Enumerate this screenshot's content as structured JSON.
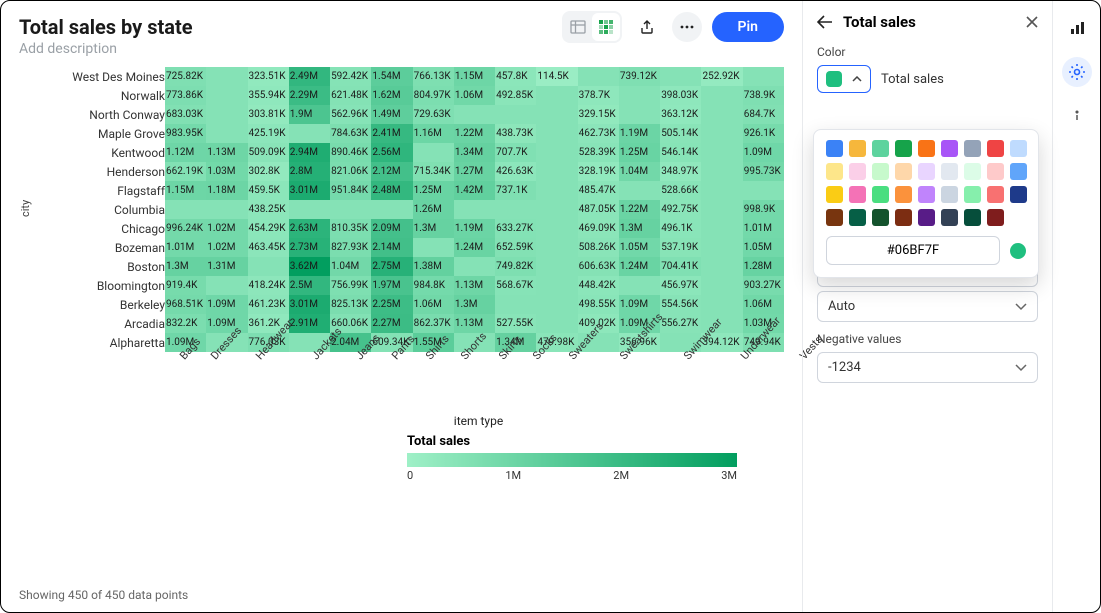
{
  "header": {
    "title": "Total sales by state",
    "subtitle": "Add description",
    "pin_label": "Pin"
  },
  "panel": {
    "title": "Total sales",
    "color_label": "Color",
    "series_label": "Total sales",
    "auto_label": "Auto",
    "neg_label": "Negative values",
    "neg_value": "-1234",
    "hex": "#06BF7F",
    "swatch": "#1fbf7f"
  },
  "palette": [
    "#3b82f6",
    "#f6b73c",
    "#5dd39e",
    "#16a34a",
    "#f97316",
    "#a855f7",
    "#94a3b8",
    "#ef4444",
    "#ffffff00",
    "#bfdbfe",
    "#fde68a",
    "#fbcfe8",
    "#c7f9cc",
    "#fed7aa",
    "#e9d5ff",
    "#e2e8f0",
    "#dcfce7",
    "#fecaca",
    "#60a5fa",
    "#facc15",
    "#f472b6",
    "#4ade80",
    "#fb923c",
    "#c084fc",
    "#cbd5e1",
    "#86efac",
    "#f87171",
    "#1e3a8a",
    "#78350f",
    "#065f46",
    "#14532d",
    "#7c2d12",
    "#581c87",
    "#334155",
    "#064e3b",
    "#7f1d1d"
  ],
  "chart": {
    "y_label": "city",
    "x_label": "item type",
    "y_categories": [
      "West Des Moines",
      "Norwalk",
      "North Conway",
      "Maple Grove",
      "Kentwood",
      "Henderson",
      "Flagstaff",
      "Columbia",
      "Chicago",
      "Bozeman",
      "Boston",
      "Bloomington",
      "Berkeley",
      "Arcadia",
      "Alpharetta"
    ],
    "x_categories": [
      "Bags",
      "Dresses",
      "Headwear",
      "Jackets",
      "Jeans",
      "Pants",
      "Shirts",
      "Shorts",
      "Skirts",
      "Socks",
      "Sweaters",
      "Sweatshirts",
      "Swimwear",
      "Underwear",
      "Vests"
    ],
    "color_scale": {
      "min": 0,
      "max": 3600000,
      "min_color": "#9ff0c7",
      "max_color": "#029e5f"
    },
    "legend": {
      "title": "Total sales",
      "ticks": [
        "0",
        "1M",
        "2M",
        "3M"
      ]
    },
    "cells": [
      [
        "725.82K",
        "",
        "323.51K",
        "2.49M",
        "592.42K",
        "1.54M",
        "766.13K",
        "1.15M",
        "457.8K",
        "114.5K",
        "",
        "739.12K",
        "",
        "252.92K",
        ""
      ],
      [
        "773.86K",
        "",
        "355.94K",
        "2.29M",
        "621.48K",
        "1.62M",
        "804.97K",
        "1.06M",
        "492.85K",
        "",
        "378.7K",
        "",
        "398.03K",
        "",
        "738.9K"
      ],
      [
        "683.03K",
        "",
        "303.81K",
        "1.9M",
        "562.96K",
        "1.49M",
        "729.63K",
        "",
        "",
        "",
        "329.15K",
        "",
        "363.12K",
        "",
        "684.7K"
      ],
      [
        "983.95K",
        "",
        "425.19K",
        "",
        "784.63K",
        "2.41M",
        "1.16M",
        "1.22M",
        "438.73K",
        "",
        "462.73K",
        "1.19M",
        "505.14K",
        "",
        "926.1K"
      ],
      [
        "1.12M",
        "1.13M",
        "509.09K",
        "2.94M",
        "890.46K",
        "2.56M",
        "",
        "1.34M",
        "707.7K",
        "",
        "528.39K",
        "1.25M",
        "546.14K",
        "",
        "1.09M"
      ],
      [
        "662.19K",
        "1.03M",
        "302.8K",
        "2.8M",
        "821.06K",
        "2.12M",
        "715.34K",
        "1.27M",
        "426.63K",
        "",
        "328.19K",
        "1.04M",
        "348.97K",
        "",
        "995.73K"
      ],
      [
        "1.15M",
        "1.18M",
        "459.5K",
        "3.01M",
        "951.84K",
        "2.48M",
        "1.25M",
        "1.42M",
        "737.1K",
        "",
        "485.47K",
        "",
        "528.66K",
        "",
        ""
      ],
      [
        "",
        "",
        "438.25K",
        "",
        "",
        "",
        "1.26M",
        "",
        "",
        "",
        "487.05K",
        "1.22M",
        "492.75K",
        "",
        "998.9K"
      ],
      [
        "996.24K",
        "1.02M",
        "454.29K",
        "2.63M",
        "810.35K",
        "2.09M",
        "1.3M",
        "1.19M",
        "633.27K",
        "",
        "469.09K",
        "1.3M",
        "496.1K",
        "",
        "1.01M"
      ],
      [
        "1.01M",
        "1.02M",
        "463.45K",
        "2.73M",
        "827.93K",
        "2.14M",
        "",
        "1.24M",
        "652.59K",
        "",
        "508.26K",
        "1.05M",
        "537.19K",
        "",
        "1.05M"
      ],
      [
        "1.3M",
        "1.31M",
        "",
        "3.62M",
        "1.04M",
        "2.75M",
        "1.38M",
        "",
        "749.82K",
        "",
        "606.63K",
        "1.24M",
        "704.41K",
        "",
        "1.28M"
      ],
      [
        "919.4K",
        "",
        "418.24K",
        "2.5M",
        "756.99K",
        "1.97M",
        "984.8K",
        "1.13M",
        "568.67K",
        "",
        "448.42K",
        "",
        "456.97K",
        "",
        "903.27K"
      ],
      [
        "968.51K",
        "1.09M",
        "461.23K",
        "3.01M",
        "825.13K",
        "2.25M",
        "1.06M",
        "1.3M",
        "",
        "",
        "498.55K",
        "1.09M",
        "554.56K",
        "",
        "1.06M"
      ],
      [
        "832.2K",
        "1.09M",
        "361.2K",
        "2.91M",
        "660.06K",
        "2.27M",
        "862.37K",
        "1.13M",
        "527.55K",
        "",
        "409.02K",
        "1.09M",
        "556.27K",
        "",
        "1.03M"
      ],
      [
        "1.09M",
        "",
        "776.03K",
        "",
        "2.04M",
        "609.34K",
        "1.55M",
        "",
        "1.34M",
        "479.98K",
        "",
        "356.96K",
        "",
        "394.12K",
        "749.94K"
      ]
    ]
  },
  "footer": "Showing 450 of 450 data points"
}
